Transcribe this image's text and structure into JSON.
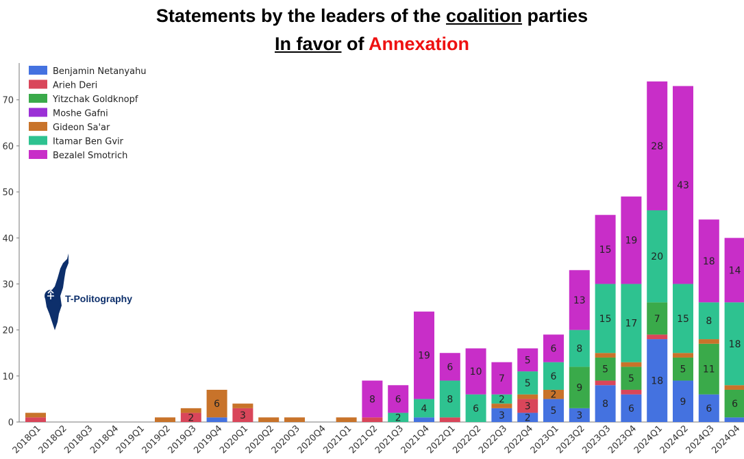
{
  "title": {
    "line1": "Statements by the leaders of the ",
    "line1_underlined": "coalition",
    "line1_end": " parties",
    "line2_underlined": "In favor",
    "line2_mid": " of ",
    "line2_red": "Annexation"
  },
  "logo": {
    "text": "T-Politography",
    "icon": "israel-map-icon"
  },
  "chart_data": {
    "type": "bar",
    "stacked": true,
    "categories": [
      "2018Q1",
      "2018Q2",
      "2018Q3",
      "2018Q4",
      "2019Q1",
      "2019Q2",
      "2019Q3",
      "2019Q4",
      "2020Q1",
      "2020Q2",
      "2020Q3",
      "2020Q4",
      "2021Q1",
      "2021Q2",
      "2021Q3",
      "2021Q4",
      "2022Q1",
      "2022Q2",
      "2022Q3",
      "2022Q4",
      "2023Q1",
      "2023Q2",
      "2023Q3",
      "2023Q4",
      "2024Q1",
      "2024Q2",
      "2024Q3",
      "2024Q4"
    ],
    "ylim": [
      0,
      78
    ],
    "yticks": [
      0,
      10,
      20,
      30,
      40,
      50,
      60,
      70
    ],
    "legend_position": "top-left",
    "series": [
      {
        "name": "Benjamin Netanyahu",
        "color": "#4472e0",
        "values": [
          0,
          0,
          0,
          0,
          0,
          0,
          0,
          1,
          0,
          0,
          0,
          0,
          0,
          0,
          0,
          1,
          0,
          0,
          3,
          2,
          5,
          3,
          8,
          6,
          18,
          9,
          6,
          1
        ]
      },
      {
        "name": "Arieh Deri",
        "color": "#d9465a",
        "values": [
          1,
          0,
          0,
          0,
          0,
          0,
          2,
          0,
          3,
          0,
          0,
          0,
          0,
          1,
          0,
          0,
          1,
          0,
          0,
          3,
          0,
          0,
          1,
          1,
          1,
          0,
          0,
          0
        ]
      },
      {
        "name": "Yitzchak Goldknopf",
        "color": "#3aaa4a",
        "values": [
          0,
          0,
          0,
          0,
          0,
          0,
          0,
          0,
          0,
          0,
          0,
          0,
          0,
          0,
          0,
          0,
          0,
          0,
          0,
          0,
          0,
          9,
          5,
          5,
          7,
          5,
          11,
          6
        ]
      },
      {
        "name": "Moshe Gafni",
        "color": "#9b30d6",
        "values": [
          0,
          0,
          0,
          0,
          0,
          0,
          0,
          0,
          0,
          0,
          0,
          0,
          0,
          0,
          0,
          0,
          0,
          0,
          0,
          0,
          0,
          0,
          0,
          0,
          0,
          0,
          0,
          0
        ]
      },
      {
        "name": "Gideon Sa'ar",
        "color": "#c8732a",
        "values": [
          1,
          0,
          0,
          0,
          0,
          1,
          1,
          6,
          1,
          1,
          1,
          0,
          1,
          0,
          0,
          0,
          0,
          0,
          1,
          1,
          2,
          0,
          1,
          1,
          0,
          1,
          1,
          1
        ]
      },
      {
        "name": "Itamar Ben Gvir",
        "color": "#2ec290",
        "values": [
          0,
          0,
          0,
          0,
          0,
          0,
          0,
          0,
          0,
          0,
          0,
          0,
          0,
          0,
          2,
          4,
          8,
          6,
          2,
          5,
          6,
          8,
          15,
          17,
          20,
          15,
          8,
          18
        ]
      },
      {
        "name": "Bezalel Smotrich",
        "color": "#c82ec8",
        "values": [
          0,
          0,
          0,
          0,
          0,
          0,
          0,
          0,
          0,
          0,
          0,
          0,
          0,
          8,
          6,
          19,
          6,
          10,
          7,
          5,
          6,
          13,
          15,
          19,
          28,
          43,
          18,
          14
        ]
      }
    ]
  }
}
